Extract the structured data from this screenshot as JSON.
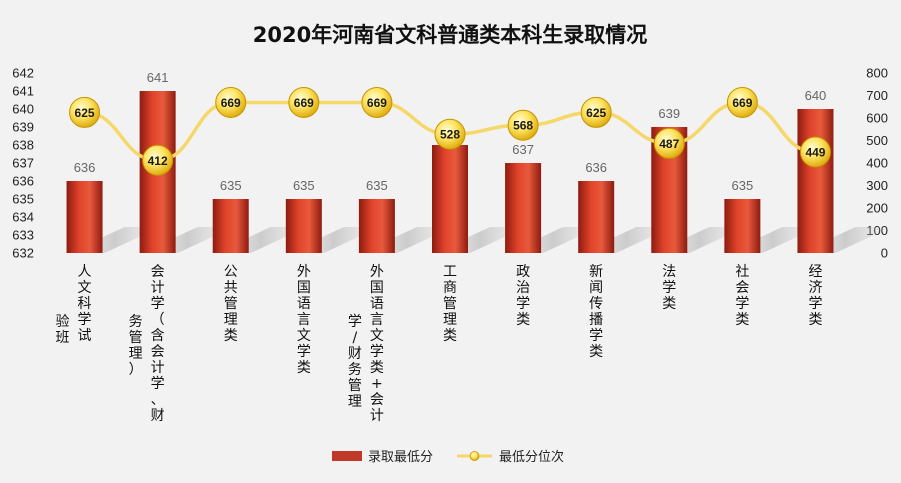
{
  "chart_data": {
    "type": "bar+line",
    "title": "2020年河南省文科普通类本科生录取情况",
    "categories": [
      [
        "人文科学试",
        "验班"
      ],
      [
        "会计学（含会计学、财",
        "务管理）"
      ],
      [
        "公共管理类"
      ],
      [
        "外国语言文学类"
      ],
      [
        "外国语言文学类+会计",
        "学/财务管理"
      ],
      [
        "工商管理类"
      ],
      [
        "政治学类"
      ],
      [
        "新闻传播学类"
      ],
      [
        "法学类"
      ],
      [
        "社会学类"
      ],
      [
        "经济学类"
      ]
    ],
    "series": [
      {
        "name": "录取最低分",
        "type": "bar",
        "axis": "left",
        "values": [
          636,
          641,
          635,
          635,
          635,
          638,
          637,
          636,
          639,
          635,
          640
        ],
        "color": "#c0392b"
      },
      {
        "name": "最低分位次",
        "type": "line",
        "axis": "right",
        "values": [
          625,
          412,
          669,
          669,
          669,
          528,
          568,
          625,
          487,
          669,
          449
        ],
        "color": "#f5d04a"
      }
    ],
    "left_axis": {
      "ylim": [
        632,
        642
      ],
      "ticks": [
        632,
        633,
        634,
        635,
        636,
        637,
        638,
        639,
        640,
        641,
        642
      ]
    },
    "right_axis": {
      "ylim": [
        0,
        800
      ],
      "ticks": [
        0,
        100,
        200,
        300,
        400,
        500,
        600,
        700,
        800
      ]
    },
    "grid": false,
    "legend_position": "bottom"
  }
}
